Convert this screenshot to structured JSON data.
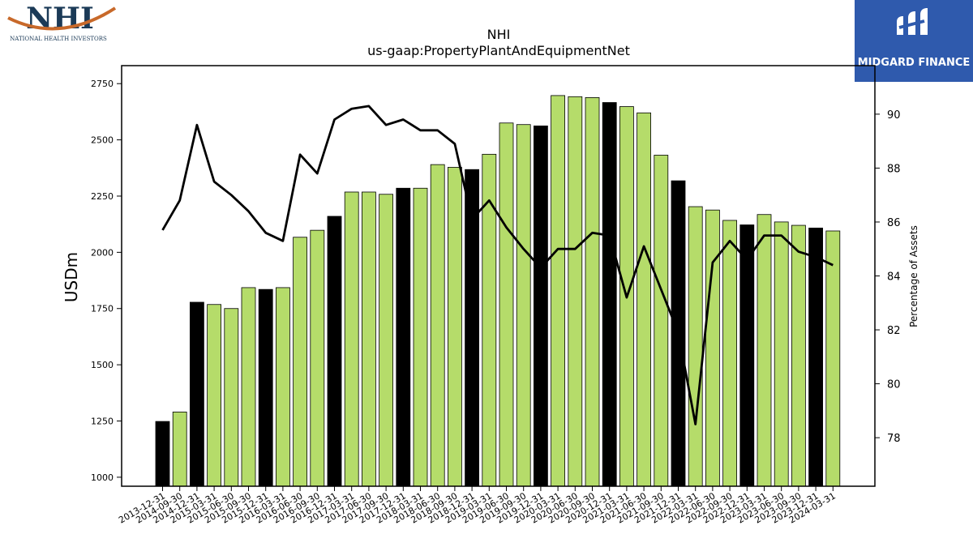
{
  "branding": {
    "left_logo_letters": "NHI",
    "left_logo_text": "NATIONAL HEALTH INVESTORS",
    "right_logo_text": "MIDGARD FINANCE",
    "brand_blue": "#2f5aad",
    "nhi_navy": "#1b3a57",
    "nhi_orange": "#c8692a"
  },
  "chart_data": {
    "type": "bar",
    "title": "NHI",
    "subtitle": "us-gaap:PropertyPlantAndEquipmentNet",
    "ylabel": "USDm",
    "y2label": "Percentage of Assets",
    "ylim": [
      960,
      2830
    ],
    "y2lim": [
      76.2,
      91.8
    ],
    "yticks": [
      1000,
      1250,
      1500,
      1750,
      2000,
      2250,
      2500,
      2750
    ],
    "y2ticks": [
      78,
      80,
      82,
      84,
      86,
      88,
      90
    ],
    "grid": false,
    "colors": {
      "annual": "#000000",
      "quarter": "#b5dc6a",
      "line": "#000000"
    },
    "categories": [
      "2013-12-31",
      "2014-09-30",
      "2014-12-31",
      "2015-03-31",
      "2015-06-30",
      "2015-09-30",
      "2015-12-31",
      "2016-03-31",
      "2016-06-30",
      "2016-09-30",
      "2016-12-31",
      "2017-03-31",
      "2017-06-30",
      "2017-09-30",
      "2017-12-31",
      "2018-03-31",
      "2018-06-30",
      "2018-09-30",
      "2018-12-31",
      "2019-03-31",
      "2019-06-30",
      "2019-09-30",
      "2019-12-31",
      "2020-03-31",
      "2020-06-30",
      "2020-09-30",
      "2020-12-31",
      "2021-03-31",
      "2021-06-30",
      "2021-09-30",
      "2021-12-31",
      "2022-03-31",
      "2022-06-30",
      "2022-09-30",
      "2022-12-31",
      "2023-03-31",
      "2023-06-30",
      "2023-09-30",
      "2023-12-31",
      "2024-03-31"
    ],
    "series": [
      {
        "values": [
          1248,
          1290,
          1778,
          1768,
          1750,
          1843,
          1835,
          1843,
          2067,
          2098,
          2160,
          2268,
          2268,
          2258,
          2285,
          2285,
          2390,
          2378,
          2368,
          2436,
          2575,
          2568,
          2562,
          2697,
          2692,
          2688,
          2666,
          2648,
          2620,
          2432,
          2318,
          2203,
          2188,
          2142,
          2122,
          2168,
          2135,
          2120,
          2108,
          2095
        ],
        "period_type": [
          "annual",
          "quarter",
          "annual",
          "quarter",
          "quarter",
          "quarter",
          "annual",
          "quarter",
          "quarter",
          "quarter",
          "annual",
          "quarter",
          "quarter",
          "quarter",
          "annual",
          "quarter",
          "quarter",
          "quarter",
          "annual",
          "quarter",
          "quarter",
          "quarter",
          "annual",
          "quarter",
          "quarter",
          "quarter",
          "annual",
          "quarter",
          "quarter",
          "quarter",
          "annual",
          "quarter",
          "quarter",
          "quarter",
          "annual",
          "quarter",
          "quarter",
          "quarter",
          "annual",
          "quarter"
        ]
      },
      {
        "axis": "right",
        "type": "line",
        "values": [
          85.7,
          86.8,
          89.6,
          87.5,
          87.0,
          86.4,
          85.6,
          85.3,
          88.5,
          87.8,
          89.8,
          90.2,
          90.3,
          89.6,
          89.8,
          89.4,
          89.4,
          88.9,
          86.1,
          86.8,
          85.8,
          85.0,
          84.3,
          85.0,
          85.0,
          85.6,
          85.5,
          83.2,
          85.1,
          83.5,
          81.9,
          78.5,
          84.5,
          85.3,
          84.6,
          85.5,
          85.5,
          84.9,
          84.7,
          84.4
        ]
      }
    ]
  }
}
